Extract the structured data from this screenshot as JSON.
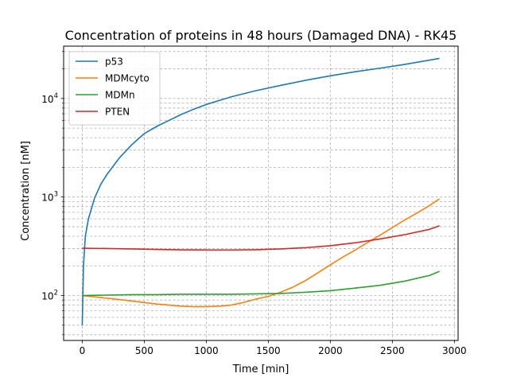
{
  "chart_data": {
    "type": "line",
    "title": "Concentration of proteins in 48 hours (Damaged DNA) - RK45",
    "xlabel": "Time [min]",
    "ylabel": "Concentration [nM]",
    "xlim": [
      -150,
      3030
    ],
    "ylim": [
      35,
      34000
    ],
    "yscale": "log",
    "grid": true,
    "legend_position": "top-left",
    "x_ticks": [
      0,
      500,
      1000,
      1500,
      2000,
      2500,
      3000
    ],
    "x_tick_labels": [
      "0",
      "500",
      "1000",
      "1500",
      "2000",
      "2500",
      "3000"
    ],
    "y_major_ticks": [
      100,
      1000,
      10000
    ],
    "y_tick_labels": [
      {
        "base": "10",
        "exp": "2"
      },
      {
        "base": "10",
        "exp": "3"
      },
      {
        "base": "10",
        "exp": "4"
      }
    ],
    "y_minor_ticks": [
      40,
      50,
      60,
      70,
      80,
      90,
      200,
      300,
      400,
      500,
      600,
      700,
      800,
      900,
      2000,
      3000,
      4000,
      5000,
      6000,
      7000,
      8000,
      9000,
      20000,
      30000
    ],
    "series": [
      {
        "name": "p53",
        "color": "#1f77b4",
        "points": [
          [
            0,
            50
          ],
          [
            10,
            200
          ],
          [
            25,
            400
          ],
          [
            50,
            600
          ],
          [
            100,
            980
          ],
          [
            150,
            1350
          ],
          [
            200,
            1700
          ],
          [
            300,
            2500
          ],
          [
            400,
            3400
          ],
          [
            500,
            4400
          ],
          [
            600,
            5200
          ],
          [
            700,
            6000
          ],
          [
            800,
            6900
          ],
          [
            900,
            7800
          ],
          [
            1000,
            8700
          ],
          [
            1200,
            10400
          ],
          [
            1400,
            12000
          ],
          [
            1600,
            13600
          ],
          [
            1800,
            15300
          ],
          [
            2000,
            17000
          ],
          [
            2200,
            18700
          ],
          [
            2400,
            20300
          ],
          [
            2600,
            22200
          ],
          [
            2880,
            25500
          ]
        ]
      },
      {
        "name": "MDMcyto",
        "color": "#ff7f0e",
        "points": [
          [
            0,
            100
          ],
          [
            100,
            97
          ],
          [
            200,
            94
          ],
          [
            300,
            91
          ],
          [
            400,
            88
          ],
          [
            500,
            85
          ],
          [
            600,
            82
          ],
          [
            700,
            80
          ],
          [
            800,
            78
          ],
          [
            900,
            77
          ],
          [
            1000,
            77
          ],
          [
            1100,
            78
          ],
          [
            1200,
            80
          ],
          [
            1300,
            85
          ],
          [
            1400,
            92
          ],
          [
            1500,
            98
          ],
          [
            1600,
            108
          ],
          [
            1700,
            122
          ],
          [
            1800,
            142
          ],
          [
            1900,
            170
          ],
          [
            2000,
            205
          ],
          [
            2100,
            245
          ],
          [
            2200,
            290
          ],
          [
            2300,
            345
          ],
          [
            2400,
            410
          ],
          [
            2500,
            490
          ],
          [
            2600,
            585
          ],
          [
            2700,
            690
          ],
          [
            2800,
            820
          ],
          [
            2880,
            960
          ]
        ]
      },
      {
        "name": "MDMn",
        "color": "#2ca02c",
        "points": [
          [
            0,
            100
          ],
          [
            200,
            101
          ],
          [
            400,
            102
          ],
          [
            600,
            102
          ],
          [
            800,
            103
          ],
          [
            1000,
            103
          ],
          [
            1200,
            103
          ],
          [
            1400,
            104
          ],
          [
            1600,
            105
          ],
          [
            1800,
            108
          ],
          [
            2000,
            112
          ],
          [
            2200,
            119
          ],
          [
            2400,
            127
          ],
          [
            2600,
            140
          ],
          [
            2800,
            160
          ],
          [
            2880,
            176
          ]
        ]
      },
      {
        "name": "PTEN",
        "color": "#d62728",
        "points": [
          [
            0,
            302
          ],
          [
            200,
            300
          ],
          [
            400,
            297
          ],
          [
            600,
            294
          ],
          [
            800,
            291
          ],
          [
            1000,
            290
          ],
          [
            1200,
            290
          ],
          [
            1400,
            292
          ],
          [
            1600,
            297
          ],
          [
            1800,
            306
          ],
          [
            2000,
            320
          ],
          [
            2200,
            343
          ],
          [
            2400,
            375
          ],
          [
            2600,
            415
          ],
          [
            2800,
            470
          ],
          [
            2880,
            510
          ]
        ]
      }
    ]
  }
}
